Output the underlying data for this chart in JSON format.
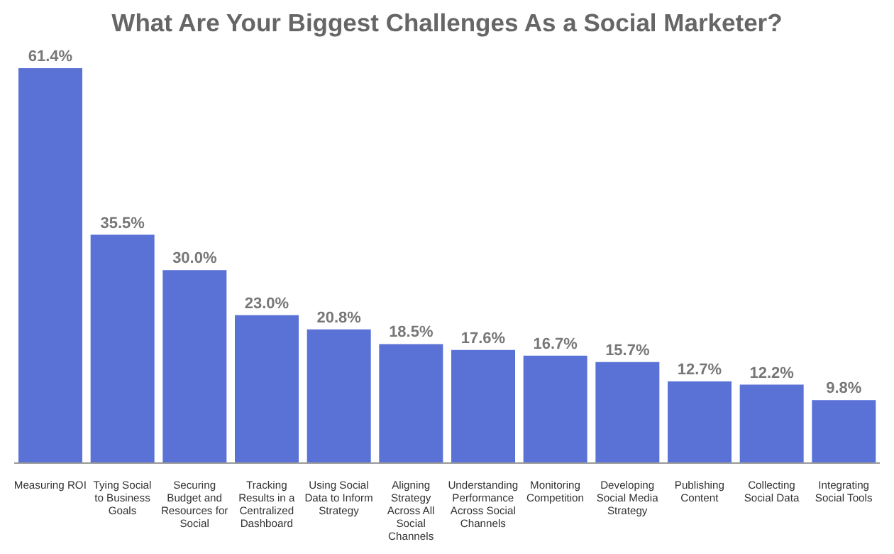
{
  "chart_data": {
    "type": "bar",
    "title": "What Are Your Biggest Challenges As a Social Marketer?",
    "categories": [
      "Measuring ROI",
      "Tying Social to Business Goals",
      "Securing Budget and Resources for Social",
      "Tracking Results in a Centralized Dashboard",
      "Using Social Data to Inform Strategy",
      "Aligning Strategy Across All Social Channels",
      "Understanding Performance Across Social Channels",
      "Monitoring Competition",
      "Developing Social Media Strategy",
      "Publishing Content",
      "Collecting Social Data",
      "Integrating Social Tools"
    ],
    "values": [
      61.4,
      35.5,
      30.0,
      23.0,
      20.8,
      18.5,
      17.6,
      16.7,
      15.7,
      12.7,
      12.2,
      9.8
    ],
    "value_labels": [
      "61.4%",
      "35.5%",
      "30.0%",
      "23.0%",
      "20.8%",
      "18.5%",
      "17.6%",
      "16.7%",
      "15.7%",
      "12.7%",
      "12.2%",
      "9.8%"
    ],
    "color": "#5a72d6",
    "grid": false,
    "legend": false
  }
}
